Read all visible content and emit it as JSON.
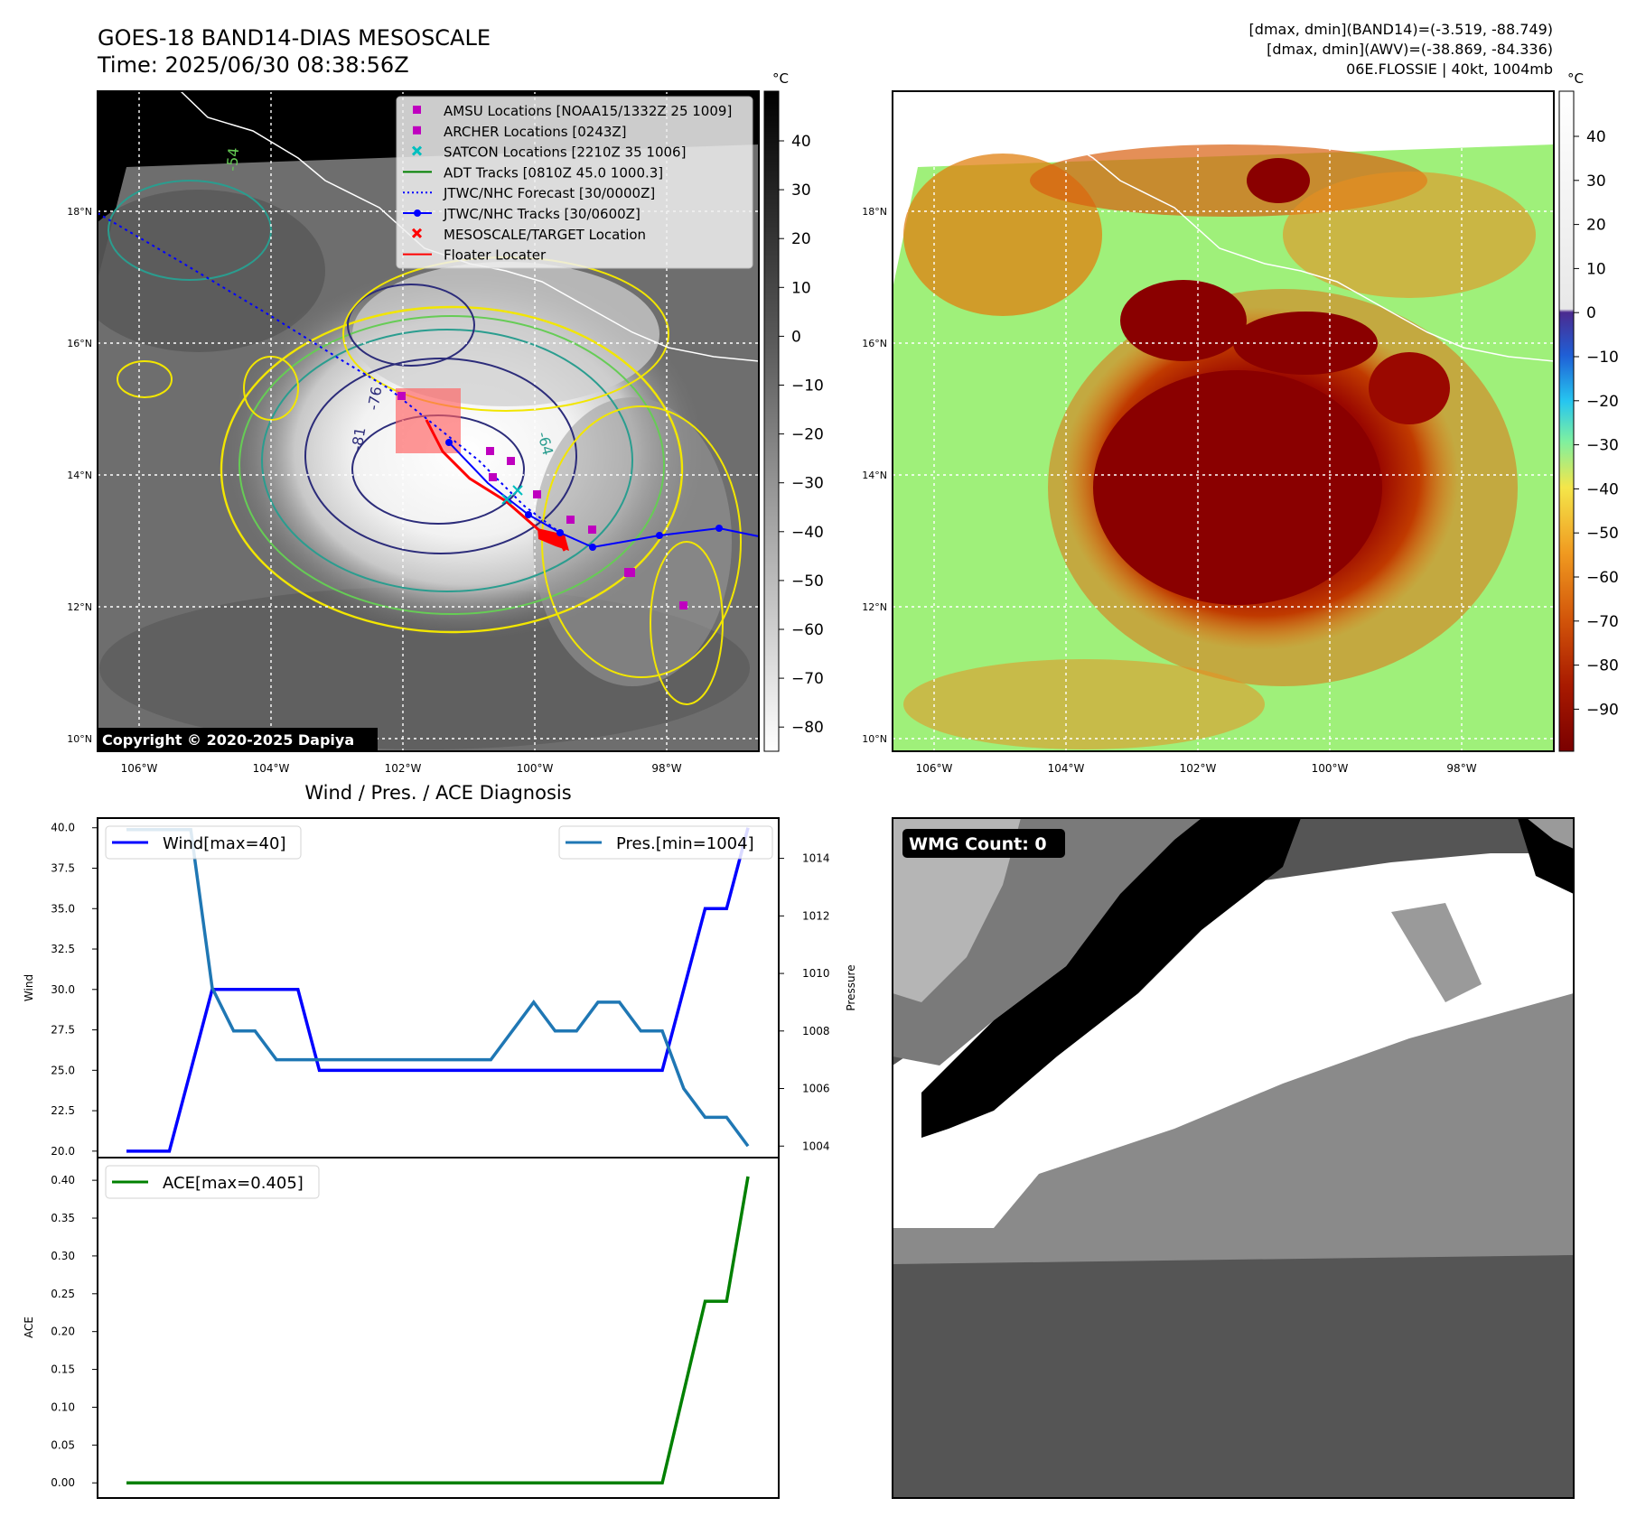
{
  "header": {
    "title_line1": "GOES-18 BAND14-DIAS MESOSCALE",
    "title_line2": "Time: 2025/06/30 08:38:56Z",
    "info_line1": "[dmax, dmin](BAND14)=(-3.519, -88.749)",
    "info_line2": "[dmax, dmin](AWV)=(-38.869, -84.336)",
    "info_line3": "06E.FLOSSIE | 40kt, 1004mb"
  },
  "colors": {
    "wind": "#0000ff",
    "pressure": "#1f77b4",
    "ace": "#008000",
    "track": "#0000ff",
    "amsu": "#bf00bf",
    "satcon": "#00bfbf",
    "adt": "#008000",
    "target": "#ff0000",
    "contour_yellow": "#f2e600",
    "contour_green": "#66cc55",
    "contour_teal": "#2a9d8f",
    "contour_navy": "#2c2c7a"
  },
  "map_panel": {
    "lon_ticks": [
      "106°W",
      "104°W",
      "102°W",
      "100°W",
      "98°W"
    ],
    "lat_ticks": [
      "18°N",
      "16°N",
      "14°N",
      "12°N",
      "10°N"
    ],
    "contour_labels": [
      "-81",
      "-76",
      "-64",
      "-54"
    ],
    "copyright": "Copyright © 2020-2025 Dapiya",
    "legend": [
      {
        "label": "AMSU Locations [NOAA15/1332Z 25 1009]",
        "marker": "square",
        "color": "#bf00bf"
      },
      {
        "label": "ARCHER Locations [0243Z]",
        "marker": "square",
        "color": "#bf00bf"
      },
      {
        "label": "SATCON Locations [2210Z 35 1006]",
        "marker": "x",
        "color": "#00bfbf"
      },
      {
        "label": "ADT Tracks [0810Z 45.0 1000.3]",
        "marker": "line",
        "color": "#008000"
      },
      {
        "label": "JTWC/NHC Forecast [30/0000Z]",
        "marker": "dotted",
        "color": "#0000ff"
      },
      {
        "label": "JTWC/NHC Tracks [30/0600Z]",
        "marker": "line-dot",
        "color": "#0000ff"
      },
      {
        "label": "MESOSCALE/TARGET Location",
        "marker": "x",
        "color": "#ff0000"
      },
      {
        "label": "Floater Locater",
        "marker": "line",
        "color": "#ff0000"
      }
    ]
  },
  "colorbar_band14": {
    "unit": "°C",
    "ticks": [
      "40",
      "30",
      "20",
      "10",
      "0",
      "−10",
      "−20",
      "−30",
      "−40",
      "−50",
      "−60",
      "−70",
      "−80"
    ]
  },
  "colorbar_awv": {
    "unit": "°C",
    "ticks": [
      "40",
      "30",
      "20",
      "10",
      "0",
      "−10",
      "−20",
      "−30",
      "−40",
      "−50",
      "−60",
      "−70",
      "−80",
      "−90"
    ]
  },
  "wmg_panel": {
    "label": "WMG Count: 0"
  },
  "chart_data": [
    {
      "type": "line",
      "title": "Wind / Pres. / ACE Diagnosis",
      "ylabel": "Wind",
      "y2label": "Pressure",
      "ylim": [
        19.6,
        40.6
      ],
      "y2lim": [
        1003.6,
        1015.4
      ],
      "y_ticks": [
        "20.0",
        "22.5",
        "25.0",
        "27.5",
        "30.0",
        "32.5",
        "35.0",
        "37.5",
        "40.0"
      ],
      "y2_ticks": [
        "1004",
        "1006",
        "1008",
        "1010",
        "1012",
        "1014"
      ],
      "series": [
        {
          "name": "Wind[max=40]",
          "axis": "left",
          "values": [
            20,
            20,
            20,
            25,
            30,
            30,
            30,
            30,
            30,
            25,
            25,
            25,
            25,
            25,
            25,
            25,
            25,
            25,
            25,
            25,
            25,
            25,
            25,
            25,
            25,
            25,
            30,
            35,
            35,
            40
          ]
        },
        {
          "name": "Pres.[min=1004]",
          "axis": "right",
          "values": [
            1015,
            1015,
            1015,
            1015,
            1009.5,
            1008,
            1008,
            1007,
            1007,
            1007,
            1007,
            1007,
            1007,
            1007,
            1007,
            1007,
            1007,
            1007,
            1008,
            1009,
            1008,
            1008,
            1009,
            1009,
            1008,
            1008,
            1006,
            1005,
            1005,
            1004
          ]
        }
      ]
    },
    {
      "type": "line",
      "ylabel": "ACE",
      "ylim": [
        -0.02,
        0.43
      ],
      "y_ticks": [
        "0.00",
        "0.05",
        "0.10",
        "0.15",
        "0.20",
        "0.25",
        "0.30",
        "0.35",
        "0.40"
      ],
      "series": [
        {
          "name": "ACE[max=0.405]",
          "values": [
            0,
            0,
            0,
            0,
            0,
            0,
            0,
            0,
            0,
            0,
            0,
            0,
            0,
            0,
            0,
            0,
            0,
            0,
            0,
            0,
            0,
            0,
            0,
            0,
            0,
            0,
            0.12,
            0.24,
            0.24,
            0.405
          ]
        }
      ]
    }
  ]
}
